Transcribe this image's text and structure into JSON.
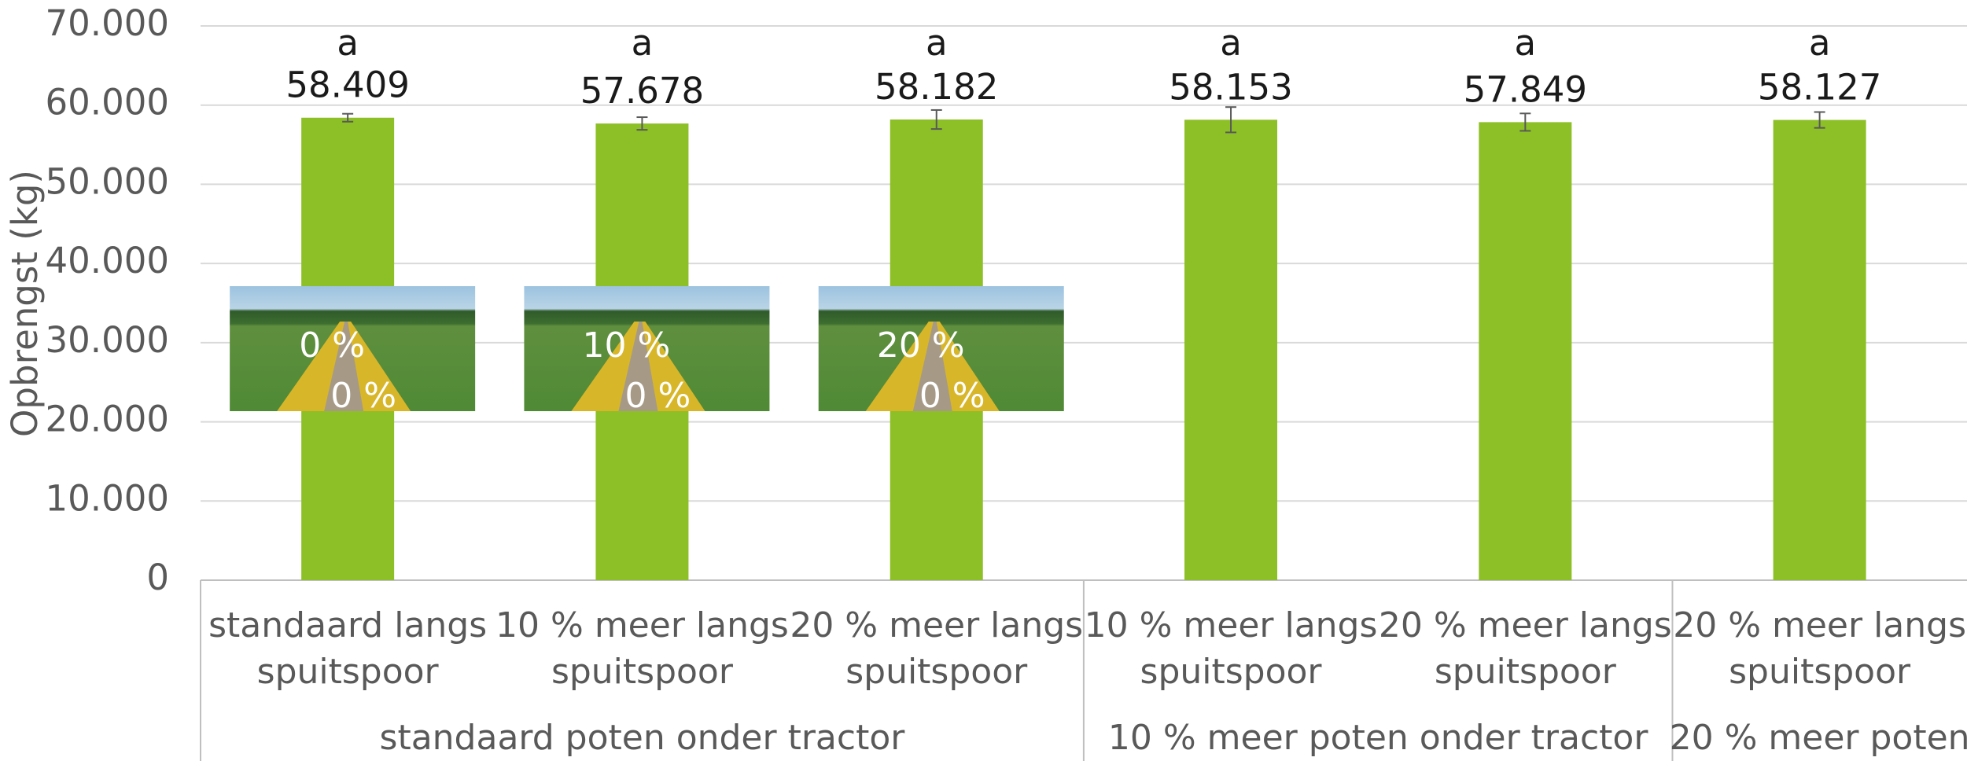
{
  "chart_data": {
    "type": "bar",
    "y_label": "Opbrengst (kg)",
    "groups": [
      {
        "label": "standaard poten onder tractor",
        "categories": [
          "standaard langs spuitspoor",
          "10 % meer langs spuitspoor",
          "20 % meer langs spuitspoor"
        ]
      },
      {
        "label": "10 % meer poten onder tractor",
        "categories": [
          "10 % meer langs spuitspoor",
          "20 % meer langs spuitspoor"
        ]
      },
      {
        "label": "20 % meer poten",
        "categories": [
          "20 % meer langs spuitspoor"
        ]
      }
    ],
    "series": [
      {
        "name": "Opbrengst",
        "color": "#8dc026",
        "values": [
          58409,
          57678,
          58182,
          58153,
          57849,
          58127
        ],
        "value_labels": [
          "58.409",
          "57.678",
          "58.182",
          "58.153",
          "57.849",
          "58.127"
        ],
        "errors": [
          500,
          800,
          1200,
          1600,
          1100,
          1000
        ],
        "significance": [
          "a",
          "a",
          "a",
          "a",
          "a",
          "a"
        ]
      }
    ],
    "insets": [
      {
        "top": "0 %",
        "bottom": "0 %"
      },
      {
        "top": "10 %",
        "bottom": "0 %"
      },
      {
        "top": "20 %",
        "bottom": "0 %"
      }
    ],
    "ylim": [
      0,
      70000
    ],
    "yticks": [
      {
        "value": 0,
        "label": "0"
      },
      {
        "value": 10000,
        "label": "10.000"
      },
      {
        "value": 20000,
        "label": "20.000"
      },
      {
        "value": 30000,
        "label": "30.000"
      },
      {
        "value": 40000,
        "label": "40.000"
      },
      {
        "value": 50000,
        "label": "50.000"
      },
      {
        "value": 60000,
        "label": "60.000"
      },
      {
        "value": 70000,
        "label": "70.000"
      }
    ],
    "grid": true
  }
}
